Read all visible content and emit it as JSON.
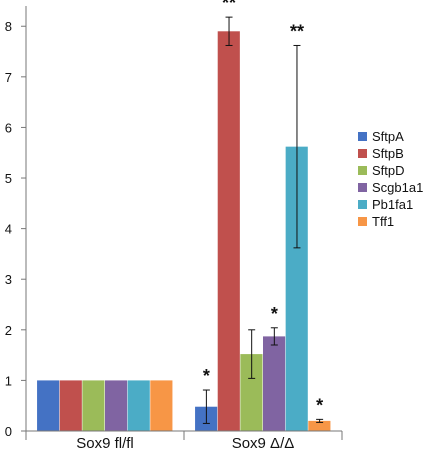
{
  "chart_data": {
    "type": "bar",
    "categories": [
      "Sox9 fl/fl",
      "Sox9 Δ/Δ"
    ],
    "series": [
      {
        "name": "SftpA",
        "color": "#4472c4",
        "values": [
          1,
          0.48
        ],
        "errors": [
          0,
          0.33
        ],
        "significance": [
          "",
          "*"
        ]
      },
      {
        "name": "SftpB",
        "color": "#c0504d",
        "values": [
          1,
          7.9
        ],
        "errors": [
          0,
          0.28
        ],
        "significance": [
          "",
          "**"
        ]
      },
      {
        "name": "SftpD",
        "color": "#9bbb59",
        "values": [
          1,
          1.52
        ],
        "errors": [
          0,
          0.48
        ],
        "significance": [
          "",
          ""
        ]
      },
      {
        "name": "Scgb1a1",
        "color": "#8064a2",
        "values": [
          1,
          1.87
        ],
        "errors": [
          0,
          0.17
        ],
        "significance": [
          "",
          "*"
        ]
      },
      {
        "name": "Pb1fa1",
        "color": "#4bacc6",
        "values": [
          1,
          5.62
        ],
        "errors": [
          0,
          2.0
        ],
        "significance": [
          "",
          "**"
        ]
      },
      {
        "name": "Tff1",
        "color": "#f79646",
        "values": [
          1,
          0.2
        ],
        "errors": [
          0,
          0.03
        ],
        "significance": [
          "",
          "*"
        ]
      }
    ],
    "yticks": [
      "0",
      "1",
      "2",
      "3",
      "4",
      "5",
      "6",
      "7",
      "8"
    ],
    "ylim": [
      0,
      8.4
    ],
    "grid": false,
    "legend_position": "right"
  }
}
